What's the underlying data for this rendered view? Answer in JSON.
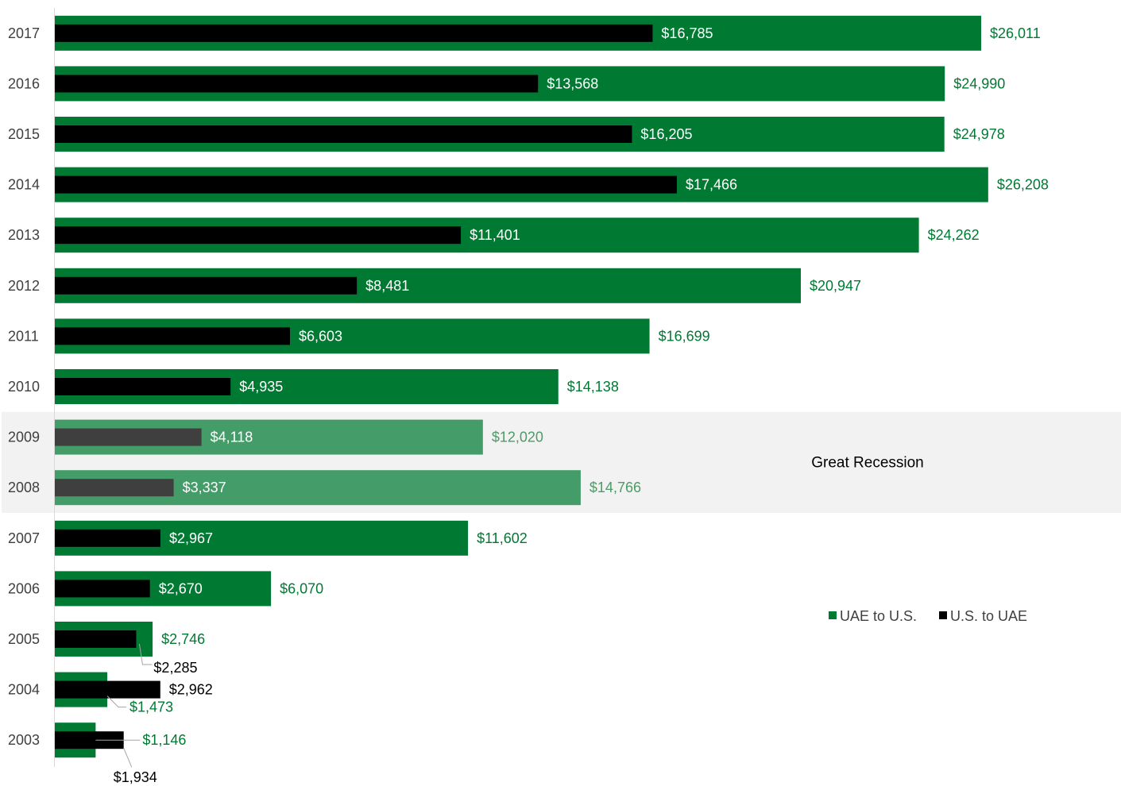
{
  "chart_data": {
    "type": "bar",
    "orientation": "horizontal",
    "categories": [
      "2017",
      "2016",
      "2015",
      "2014",
      "2013",
      "2012",
      "2011",
      "2010",
      "2009",
      "2008",
      "2007",
      "2006",
      "2005",
      "2004",
      "2003"
    ],
    "series": [
      {
        "name": "UAE to U.S.",
        "color": "#007A33",
        "values": [
          26011,
          24990,
          24978,
          26208,
          24262,
          20947,
          16699,
          14138,
          12020,
          14766,
          11602,
          6070,
          2746,
          1473,
          1146
        ],
        "labels": [
          "$26,011",
          "$24,990",
          "$24,978",
          "$26,208",
          "$24,262",
          "$20,947",
          "$16,699",
          "$14,138",
          "$12,020",
          "$14,766",
          "$11,602",
          "$6,070",
          "$2,746",
          "$1,473",
          "$1,146"
        ]
      },
      {
        "name": "U.S. to UAE",
        "color": "#000000",
        "values": [
          16785,
          13568,
          16205,
          17466,
          11401,
          8481,
          6603,
          4935,
          4118,
          3337,
          2967,
          2670,
          2285,
          2962,
          1934
        ],
        "labels": [
          "$16,785",
          "$13,568",
          "$16,205",
          "$17,466",
          "$11,401",
          "$8,481",
          "$6,603",
          "$4,935",
          "$4,118",
          "$3,337",
          "$2,967",
          "$2,670",
          "$2,285",
          "$2,962",
          "$1,934"
        ]
      }
    ],
    "xlim": [
      0,
      26400
    ],
    "grid": false,
    "legend_position": "right",
    "highlight": {
      "label": "Great Recession",
      "categories": [
        "2009",
        "2008"
      ],
      "background_color": "#F2F2F2"
    }
  }
}
